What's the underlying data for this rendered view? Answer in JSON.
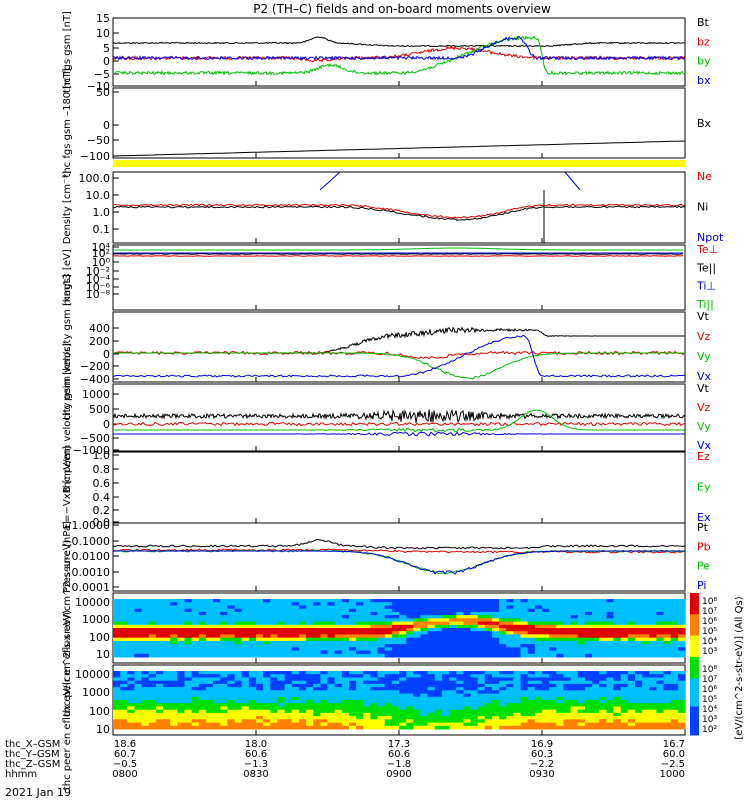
{
  "title": "P2 (TH–C) fields and on-board moments overview",
  "colors": {
    "black": "#000000",
    "red": "#e00000",
    "green": "#00c000",
    "blue": "#0000e0",
    "yellow": "#ffff00"
  },
  "x_axis": {
    "ticks": [
      "0800",
      "0830",
      "0900",
      "0930",
      "1000"
    ],
    "rows": [
      {
        "label": "thc_X–GSM",
        "values": [
          "18.6",
          "18.0",
          "17.3",
          "16.9",
          "16.7"
        ]
      },
      {
        "label": "thc_Y–GSM",
        "values": [
          "60.7",
          "60.6",
          "60.6",
          "60.3",
          "60.0"
        ]
      },
      {
        "label": "thc_Z–GSM",
        "values": [
          "−0.5",
          "−1.3",
          "−1.8",
          "−2.2",
          "−2.5"
        ]
      },
      {
        "label": "hhmm",
        "values": [
          "0800",
          "0830",
          "0900",
          "0930",
          "1000"
        ]
      }
    ],
    "date": "2021 Jan 19"
  },
  "chart_data": [
    {
      "type": "line",
      "ylabel": "thc fgs gsm [nT]",
      "ylim": [
        -10,
        15
      ],
      "ytick_labels": [
        "15",
        "10",
        "5",
        "0",
        "−5",
        "−10"
      ],
      "series": [
        {
          "name": "Bt",
          "color": "#000000"
        },
        {
          "name": "bz",
          "color": "#e00000"
        },
        {
          "name": "by",
          "color": "#00c000"
        },
        {
          "name": "bx",
          "color": "#0000e0"
        }
      ]
    },
    {
      "type": "line",
      "ylabel": "thc fgs gsm –180 [nT]",
      "ylim": [
        -130,
        50
      ],
      "ytick_labels": [
        "50",
        "0",
        "−50",
        "−100"
      ],
      "series": [
        {
          "name": "Bx",
          "color": "#000000"
        }
      ]
    },
    {
      "type": "line",
      "ylabel": "Density [cm⁻³]",
      "scale": "log",
      "ylim": [
        0.03,
        200
      ],
      "ytick_labels": [
        "100.0",
        "10.0",
        "1.0",
        "0.1"
      ],
      "series": [
        {
          "name": "Ne",
          "color": "#e00000"
        },
        {
          "name": "Ni",
          "color": "#000000"
        },
        {
          "name": "Npot",
          "color": "#0000e0"
        }
      ]
    },
    {
      "type": "line",
      "ylabel": "magt3 [eV]",
      "scale": "log",
      "ytick_labels": [
        "10⁴",
        "10²",
        "10⁰",
        "10⁻²",
        "10⁻⁴",
        "10⁻⁶",
        "10⁻⁸"
      ],
      "series": [
        {
          "name": "Te⊥",
          "color": "#e00000"
        },
        {
          "name": "Te||",
          "color": "#000000"
        },
        {
          "name": "Ti⊥",
          "color": "#0000e0"
        },
        {
          "name": "Ti||",
          "color": "#00c000"
        }
      ]
    },
    {
      "type": "line",
      "ylabel": "thc peim velocity gsm [km/s]",
      "ylim": [
        -400,
        400
      ],
      "ytick_labels": [
        "400",
        "200",
        "0",
        "−200",
        "−400"
      ],
      "series": [
        {
          "name": "Vt",
          "color": "#000000"
        },
        {
          "name": "Vz",
          "color": "#e00000"
        },
        {
          "name": "Vy",
          "color": "#00c000"
        },
        {
          "name": "Vx",
          "color": "#0000e0"
        }
      ]
    },
    {
      "type": "line",
      "ylabel": "thc peem velocity gsm [km/s]",
      "ylim": [
        -1000,
        1000
      ],
      "ytick_labels": [
        "1000",
        "500",
        "0",
        "−500",
        "−1000"
      ],
      "series": [
        {
          "name": "Vt",
          "color": "#000000"
        },
        {
          "name": "Vz",
          "color": "#e00000"
        },
        {
          "name": "Vy",
          "color": "#00c000"
        },
        {
          "name": "Vx",
          "color": "#0000e0"
        }
      ]
    },
    {
      "type": "line",
      "ylabel": "E=−VxB [mV/m]",
      "ylim": [
        0,
        1
      ],
      "ytick_labels": [
        "1.0",
        "0.8",
        "0.6",
        "0.4",
        "0.2",
        "0.0"
      ],
      "series": [
        {
          "name": "Ez",
          "color": "#e00000"
        },
        {
          "name": "Ey",
          "color": "#00c000"
        },
        {
          "name": "Ex",
          "color": "#0000e0"
        }
      ]
    },
    {
      "type": "line",
      "ylabel": "Pressure [nPa]",
      "scale": "log",
      "ylim": [
        0.0003,
        1
      ],
      "ytick_labels": [
        "1.0000",
        "0.1000",
        "0.0100",
        "0.0010",
        "0.0001"
      ],
      "series": [
        {
          "name": "Pt",
          "color": "#000000"
        },
        {
          "name": "Pb",
          "color": "#e00000"
        },
        {
          "name": "Pe",
          "color": "#00c000"
        },
        {
          "name": "Pi",
          "color": "#0000e0"
        }
      ]
    },
    {
      "type": "heatmap",
      "ylabel": "thc peir en eflux eV/(cm^2-s-sr-eV)",
      "scale": "log",
      "ytick_labels": [
        "10000",
        "1000",
        "100",
        "10"
      ]
    },
    {
      "type": "heatmap",
      "ylabel": "thc peer en eflux eV/(cm^2-s-sr-eV)",
      "scale": "log",
      "ytick_labels": [
        "10000",
        "1000",
        "100",
        "10"
      ]
    }
  ],
  "colorbar": {
    "label": "[eV/(cm^2-s-str-eV)] (All Qs)",
    "ticks_top": [
      "10⁸",
      "10⁷",
      "10⁶",
      "10⁵",
      "10⁴",
      "10³"
    ],
    "ticks_bottom": [
      "10⁸",
      "10⁷",
      "10⁶",
      "10⁵",
      "10⁴",
      "10³",
      "10²"
    ]
  }
}
